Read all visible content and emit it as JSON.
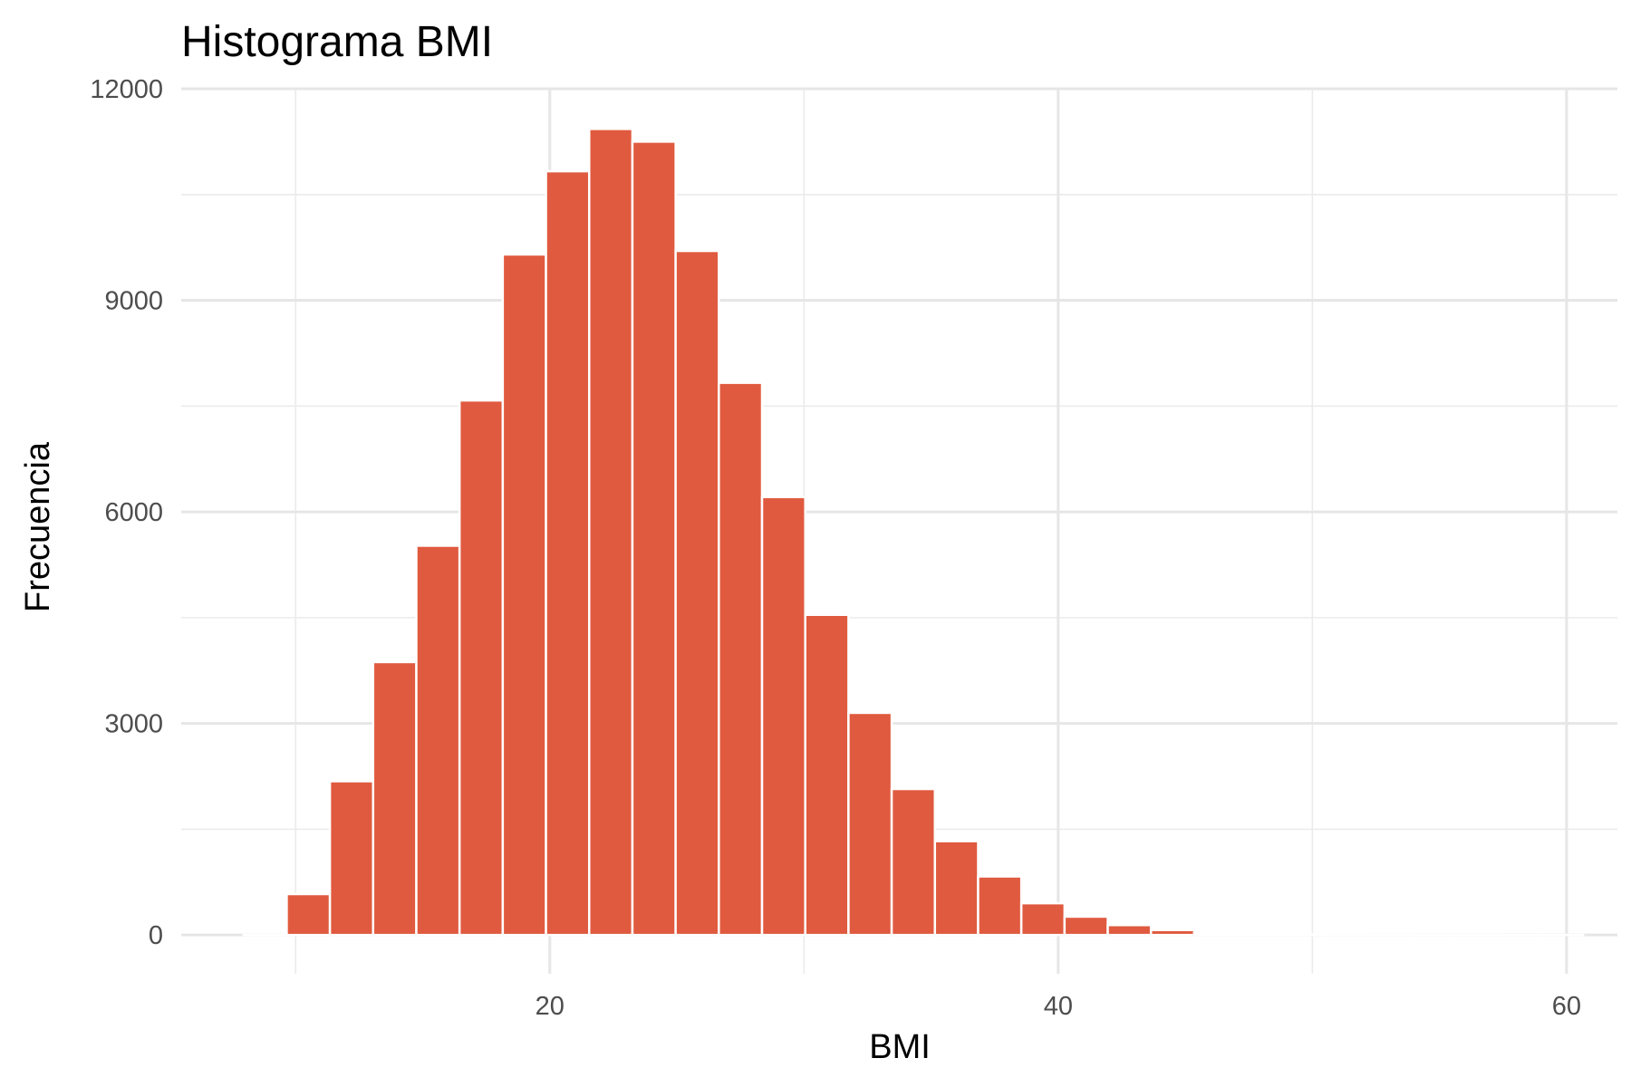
{
  "chart_data": {
    "type": "bar",
    "title": "Histograma BMI",
    "xlabel": "BMI",
    "ylabel": "Frecuencia",
    "xlim": [
      5.5,
      62
    ],
    "ylim": [
      -550,
      12000
    ],
    "bin_width": 1.7,
    "x": [
      8.8,
      10.5,
      12.2,
      13.9,
      15.6,
      17.3,
      19.0,
      20.7,
      22.4,
      24.1,
      25.8,
      27.5,
      29.2,
      30.9,
      32.6,
      34.3,
      36.0,
      37.7,
      39.4,
      41.1,
      42.8,
      44.5,
      46.2,
      47.9,
      49.6,
      51.3,
      53.0,
      54.7,
      56.4,
      58.1,
      59.8
    ],
    "values": [
      2,
      580,
      2180,
      3870,
      5520,
      7580,
      9650,
      10830,
      11430,
      11250,
      9700,
      7830,
      6210,
      4540,
      3150,
      2070,
      1330,
      830,
      450,
      260,
      140,
      70,
      25,
      12,
      6,
      4,
      3,
      2,
      2,
      1,
      1
    ],
    "x_ticks": [
      20,
      40,
      60
    ],
    "x_tick_labels": [
      "20",
      "40",
      "60"
    ],
    "y_ticks": [
      0,
      3000,
      6000,
      9000,
      12000
    ],
    "y_tick_labels": [
      "0",
      "3000",
      "6000",
      "9000",
      "12000"
    ],
    "bar_color": "#E05A3F",
    "bar_outline": "#FFFFFF",
    "grid": true,
    "legend": "none"
  }
}
